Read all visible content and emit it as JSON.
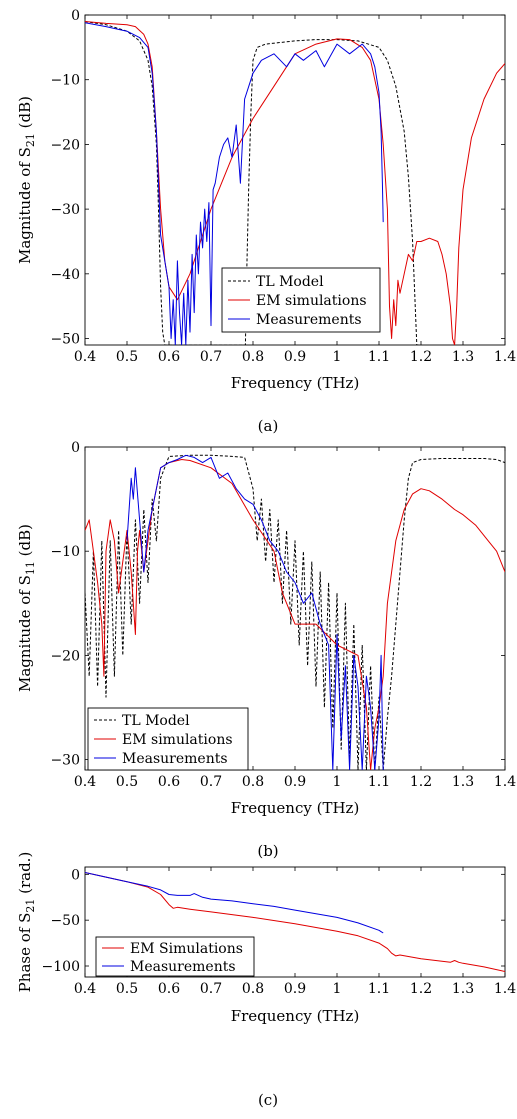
{
  "chart_data": [
    {
      "type": "line",
      "caption": "(a)",
      "xlabel": "Frequency (THz)",
      "ylabel_main": "Magnitude of S",
      "ylabel_sub": "21",
      "ylabel_tail": " (dB)",
      "xlim": [
        0.4,
        1.4
      ],
      "ylim": [
        -51,
        0
      ],
      "xticks": [
        "0.4",
        "0.5",
        "0.6",
        "0.7",
        "0.8",
        "0.9",
        "1",
        "1.1",
        "1.2",
        "1.3",
        "1.4"
      ],
      "yticks": [
        "0",
        "−10",
        "−20",
        "−30",
        "−40",
        "−50"
      ],
      "ytick_values": [
        0,
        -10,
        -20,
        -30,
        -40,
        -50
      ],
      "grid": false,
      "legend_position": "bottom-center",
      "series": [
        {
          "name": "TL Model",
          "color": "#000000",
          "dash": "dashed",
          "x": [
            0.4,
            0.45,
            0.5,
            0.53,
            0.55,
            0.56,
            0.57,
            0.575,
            0.58,
            0.585,
            0.59,
            0.7,
            0.782,
            0.785,
            0.79,
            0.795,
            0.8,
            0.81,
            0.83,
            0.9,
            0.95,
            1.0,
            1.05,
            1.1,
            1.12,
            1.14,
            1.16,
            1.17,
            1.18,
            1.185,
            1.19,
            1.195,
            1.2
          ],
          "y": [
            -1,
            -1.5,
            -2.5,
            -4,
            -7,
            -11,
            -20,
            -30,
            -42,
            -49,
            -51,
            -51,
            -51,
            -40,
            -26,
            -15,
            -7,
            -5,
            -4.5,
            -4,
            -3.8,
            -3.8,
            -4,
            -5,
            -7,
            -11,
            -18,
            -25,
            -35,
            -43,
            -51,
            -51,
            -51
          ]
        },
        {
          "name": "EM simulations",
          "color": "#e00000",
          "dash": "solid",
          "x": [
            0.4,
            0.45,
            0.5,
            0.52,
            0.54,
            0.55,
            0.56,
            0.57,
            0.58,
            0.59,
            0.6,
            0.62,
            0.65,
            0.7,
            0.75,
            0.8,
            0.85,
            0.9,
            0.95,
            1.0,
            1.03,
            1.06,
            1.08,
            1.1,
            1.11,
            1.12,
            1.125,
            1.13,
            1.135,
            1.14,
            1.145,
            1.15,
            1.16,
            1.17,
            1.18,
            1.19,
            1.2,
            1.22,
            1.24,
            1.25,
            1.26,
            1.27,
            1.275,
            1.28,
            1.285,
            1.29,
            1.3,
            1.32,
            1.35,
            1.38,
            1.4
          ],
          "y": [
            -1,
            -1.3,
            -1.5,
            -1.8,
            -3,
            -4.5,
            -8,
            -18,
            -30,
            -38,
            -42,
            -44,
            -40,
            -30,
            -22,
            -16,
            -11,
            -6,
            -4.5,
            -3.7,
            -3.8,
            -5,
            -7,
            -13,
            -20,
            -30,
            -45,
            -50,
            -44,
            -48,
            -41,
            -43,
            -40,
            -37,
            -38,
            -35,
            -35,
            -34.5,
            -35,
            -37,
            -40,
            -45,
            -50,
            -51,
            -45,
            -36,
            -27,
            -19,
            -13,
            -9,
            -7.5
          ]
        },
        {
          "name": "Measurements",
          "color": "#0000e0",
          "dash": "solid",
          "x": [
            0.4,
            0.45,
            0.5,
            0.53,
            0.55,
            0.56,
            0.57,
            0.58,
            0.59,
            0.6,
            0.605,
            0.61,
            0.615,
            0.62,
            0.625,
            0.63,
            0.635,
            0.64,
            0.645,
            0.65,
            0.655,
            0.66,
            0.665,
            0.67,
            0.675,
            0.68,
            0.685,
            0.69,
            0.695,
            0.7,
            0.705,
            0.71,
            0.72,
            0.73,
            0.74,
            0.75,
            0.76,
            0.77,
            0.78,
            0.79,
            0.8,
            0.82,
            0.85,
            0.88,
            0.9,
            0.92,
            0.95,
            0.97,
            1.0,
            1.03,
            1.06,
            1.08,
            1.09,
            1.1,
            1.105,
            1.108,
            1.11
          ],
          "y": [
            -1.2,
            -1.8,
            -2.5,
            -3.5,
            -5,
            -9,
            -18,
            -34,
            -38,
            -42,
            -50,
            -44,
            -51,
            -38,
            -46,
            -51,
            -43,
            -51,
            -41,
            -49,
            -37,
            -46,
            -34,
            -40,
            -32,
            -36,
            -30,
            -35,
            -29,
            -48,
            -27,
            -26,
            -22,
            -20,
            -19,
            -22,
            -17,
            -26,
            -13,
            -11,
            -9,
            -7,
            -6,
            -8,
            -6,
            -7,
            -5.5,
            -8,
            -4.5,
            -6,
            -4.5,
            -6,
            -8,
            -12,
            -18,
            -26,
            -32
          ]
        }
      ]
    },
    {
      "type": "line",
      "caption": "(b)",
      "xlabel": "Frequency (THz)",
      "ylabel_main": "Magnitude of S",
      "ylabel_sub": "11",
      "ylabel_tail": " (dB)",
      "xlim": [
        0.4,
        1.4
      ],
      "ylim": [
        -31,
        0
      ],
      "xticks": [
        "0.4",
        "0.5",
        "0.6",
        "0.7",
        "0.8",
        "0.9",
        "1",
        "1.1",
        "1.2",
        "1.3",
        "1.4"
      ],
      "yticks": [
        "0",
        "−10",
        "−20",
        "−30"
      ],
      "ytick_values": [
        0,
        -10,
        -20,
        -30
      ],
      "grid": false,
      "legend_position": "bottom-left",
      "series": [
        {
          "name": "TL Model",
          "color": "#000000",
          "dash": "dashed",
          "x": [
            0.4,
            0.41,
            0.42,
            0.43,
            0.44,
            0.45,
            0.46,
            0.47,
            0.48,
            0.49,
            0.5,
            0.51,
            0.52,
            0.53,
            0.54,
            0.55,
            0.56,
            0.57,
            0.58,
            0.6,
            0.65,
            0.7,
            0.75,
            0.78,
            0.8,
            0.81,
            0.82,
            0.83,
            0.84,
            0.85,
            0.86,
            0.87,
            0.88,
            0.89,
            0.9,
            0.91,
            0.92,
            0.93,
            0.94,
            0.95,
            0.96,
            0.97,
            0.98,
            0.99,
            1.0,
            1.01,
            1.02,
            1.03,
            1.04,
            1.05,
            1.06,
            1.07,
            1.08,
            1.09,
            1.1,
            1.11,
            1.12,
            1.13,
            1.14,
            1.15,
            1.16,
            1.17,
            1.18,
            1.2,
            1.25,
            1.3,
            1.35,
            1.38,
            1.4
          ],
          "y": [
            -14,
            -22,
            -10,
            -23,
            -9,
            -24,
            -9,
            -22,
            -8,
            -20,
            -8,
            -17,
            -7,
            -15,
            -6,
            -13,
            -5,
            -9,
            -3,
            -0.9,
            -0.8,
            -0.8,
            -0.9,
            -1,
            -4,
            -9,
            -5,
            -11,
            -6,
            -13,
            -7,
            -15,
            -8,
            -17,
            -9,
            -19,
            -10,
            -21,
            -11,
            -23,
            -12,
            -25,
            -13,
            -27,
            -14,
            -29,
            -15,
            -30,
            -17,
            -31,
            -19,
            -31,
            -21,
            -31,
            -24,
            -31,
            -26,
            -22,
            -17,
            -12,
            -7,
            -3,
            -1.5,
            -1.2,
            -1.1,
            -1.1,
            -1.1,
            -1.2,
            -1.5
          ]
        },
        {
          "name": "EM simulations",
          "color": "#e00000",
          "dash": "solid",
          "x": [
            0.4,
            0.41,
            0.42,
            0.43,
            0.44,
            0.445,
            0.45,
            0.46,
            0.47,
            0.48,
            0.49,
            0.5,
            0.51,
            0.52,
            0.525,
            0.53,
            0.54,
            0.55,
            0.56,
            0.57,
            0.58,
            0.6,
            0.63,
            0.65,
            0.7,
            0.75,
            0.8,
            0.85,
            0.87,
            0.9,
            0.95,
            1.0,
            1.05,
            1.07,
            1.08,
            1.09,
            1.1,
            1.11,
            1.12,
            1.14,
            1.16,
            1.18,
            1.2,
            1.22,
            1.25,
            1.28,
            1.3,
            1.33,
            1.36,
            1.38,
            1.4
          ],
          "y": [
            -8,
            -7,
            -10,
            -13,
            -17,
            -22,
            -10,
            -7,
            -9,
            -14,
            -11,
            -8,
            -12,
            -18,
            -10,
            -8,
            -12,
            -9,
            -6,
            -4,
            -2,
            -1.5,
            -1.2,
            -1.3,
            -2,
            -3.5,
            -7,
            -10,
            -14,
            -17,
            -17,
            -19,
            -20,
            -25,
            -31,
            -27,
            -25,
            -22,
            -15,
            -9,
            -6,
            -4.5,
            -4,
            -4.2,
            -5,
            -6,
            -6.5,
            -7.5,
            -9,
            -10,
            -12
          ]
        },
        {
          "name": "Measurements",
          "color": "#0000e0",
          "dash": "solid",
          "x": [
            0.5,
            0.51,
            0.515,
            0.52,
            0.53,
            0.54,
            0.55,
            0.56,
            0.57,
            0.58,
            0.6,
            0.62,
            0.64,
            0.66,
            0.68,
            0.7,
            0.72,
            0.74,
            0.76,
            0.78,
            0.8,
            0.82,
            0.84,
            0.86,
            0.88,
            0.9,
            0.92,
            0.94,
            0.96,
            0.98,
            0.99,
            1.0,
            1.01,
            1.02,
            1.03,
            1.04,
            1.05,
            1.06,
            1.07,
            1.08,
            1.09,
            1.1,
            1.105,
            1.11
          ],
          "y": [
            -9,
            -3,
            -5,
            -2,
            -7,
            -12,
            -8,
            -6,
            -4,
            -2,
            -1.5,
            -1.2,
            -0.8,
            -1,
            -1.5,
            -1,
            -3,
            -2.5,
            -4,
            -5,
            -5.5,
            -7,
            -9,
            -10,
            -12,
            -13,
            -15,
            -14,
            -17,
            -19,
            -31,
            -18,
            -28,
            -21,
            -31,
            -20,
            -23,
            -31,
            -22,
            -25,
            -31,
            -26,
            -20,
            -31
          ]
        }
      ]
    },
    {
      "type": "line",
      "caption": "(c)",
      "xlabel": "Frequency (THz)",
      "ylabel_main": "Phase of S",
      "ylabel_sub": "21",
      "ylabel_tail": " (rad.)",
      "xlim": [
        0.4,
        1.4
      ],
      "ylim": [
        -112,
        8
      ],
      "xticks": [
        "0.4",
        "0.5",
        "0.6",
        "0.7",
        "0.8",
        "0.9",
        "1",
        "1.1",
        "1.2",
        "1.3",
        "1.4"
      ],
      "yticks": [
        "0",
        "−50",
        "−100"
      ],
      "ytick_values": [
        0,
        -50,
        -100
      ],
      "grid": false,
      "legend_position": "bottom-left",
      "series": [
        {
          "name": "EM Simulations",
          "color": "#e00000",
          "dash": "solid",
          "x": [
            0.4,
            0.45,
            0.5,
            0.55,
            0.58,
            0.6,
            0.61,
            0.62,
            0.65,
            0.7,
            0.8,
            0.9,
            1.0,
            1.05,
            1.1,
            1.12,
            1.13,
            1.14,
            1.15,
            1.2,
            1.27,
            1.28,
            1.29,
            1.3,
            1.35,
            1.4
          ],
          "y": [
            2,
            -3,
            -8,
            -14,
            -22,
            -33,
            -37,
            -36,
            -38,
            -41,
            -47,
            -54,
            -62,
            -67,
            -75,
            -81,
            -86,
            -89,
            -88,
            -92,
            -96,
            -94,
            -96,
            -97,
            -101,
            -106
          ]
        },
        {
          "name": "Measurements",
          "color": "#0000e0",
          "dash": "solid",
          "x": [
            0.4,
            0.45,
            0.5,
            0.55,
            0.58,
            0.6,
            0.62,
            0.65,
            0.66,
            0.68,
            0.7,
            0.75,
            0.8,
            0.85,
            0.9,
            0.95,
            1.0,
            1.05,
            1.1,
            1.11
          ],
          "y": [
            2,
            -3,
            -8,
            -13,
            -17,
            -22,
            -23,
            -23,
            -21,
            -25,
            -27,
            -29,
            -32,
            -35,
            -39,
            -43,
            -47,
            -53,
            -61,
            -64
          ]
        }
      ]
    }
  ]
}
